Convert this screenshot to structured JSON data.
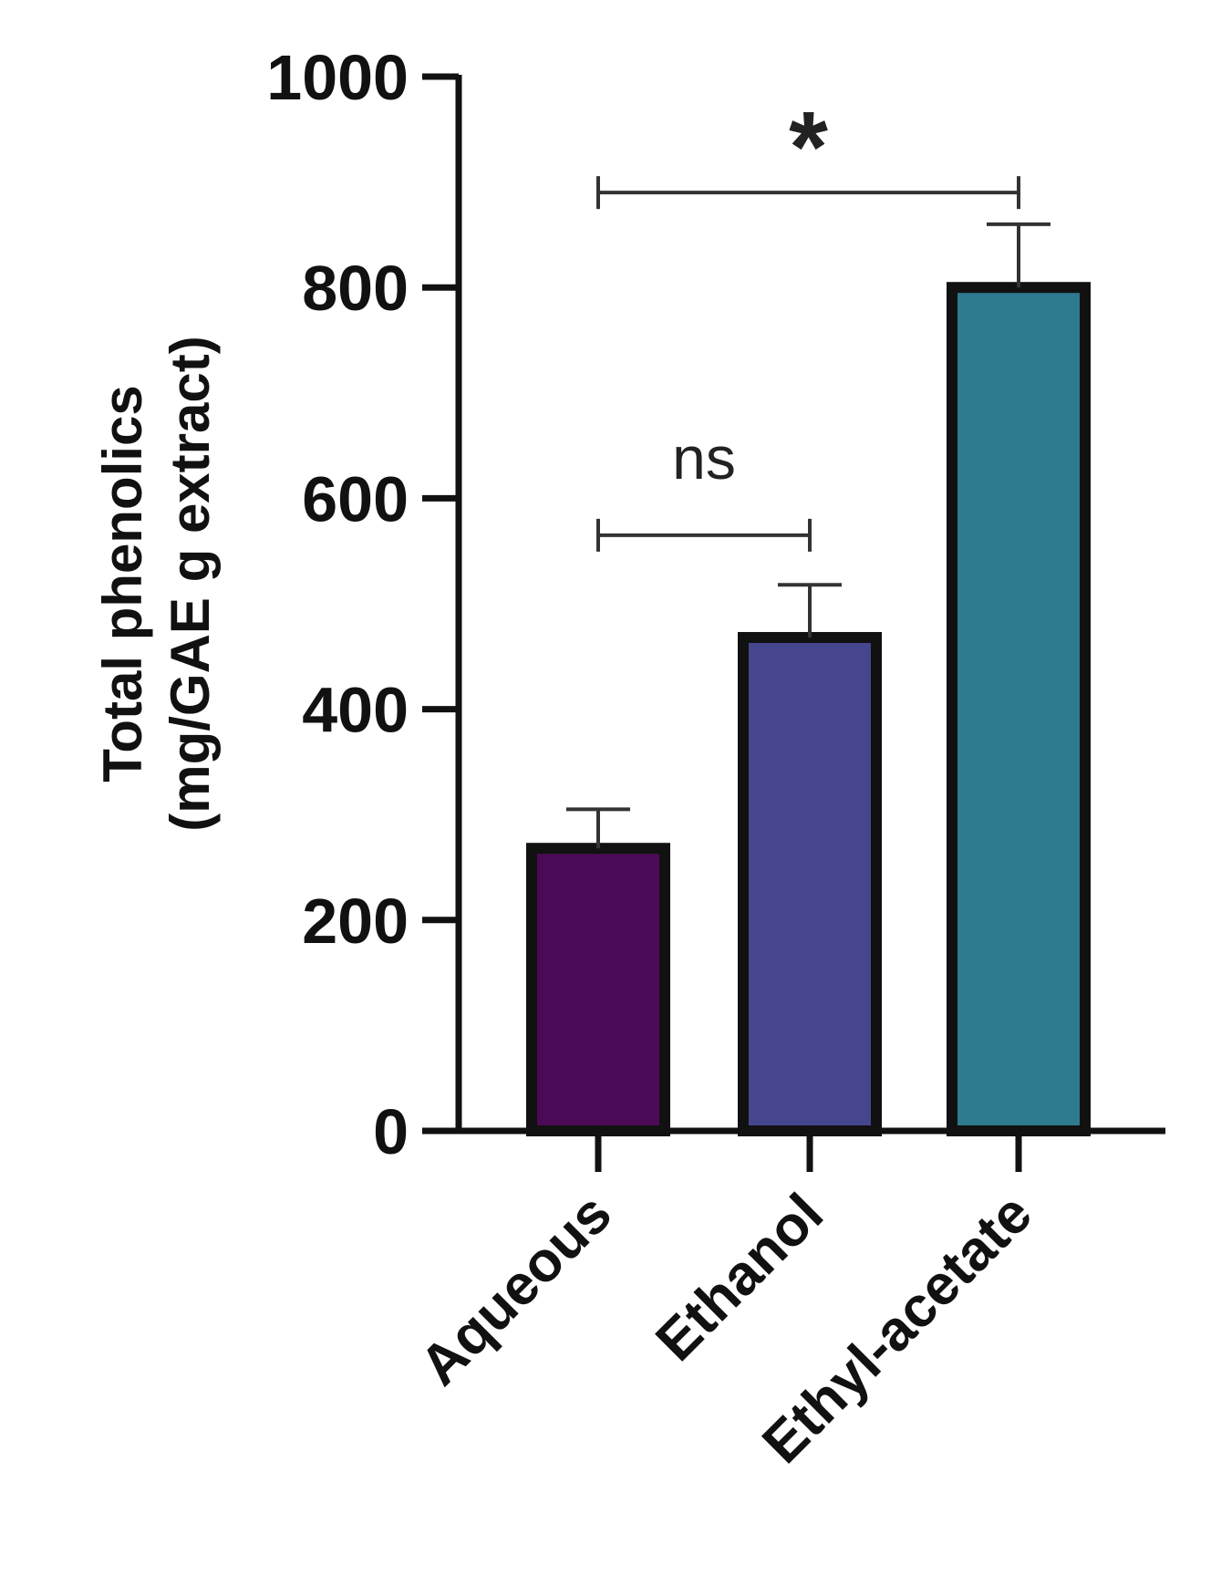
{
  "chart_data": {
    "type": "bar",
    "categories": [
      "Aqueous",
      "Ethanol",
      "Ethyl-acetate"
    ],
    "values": [
      268,
      468,
      800
    ],
    "errors": [
      37,
      50,
      60
    ],
    "colors": [
      "#4b0a55",
      "#46468f",
      "#2e7a8f"
    ],
    "title": "",
    "xlabel": "",
    "ylabel": [
      "Total phenolics",
      "(mg/GAE g extract)"
    ],
    "ylim": [
      0,
      1000
    ],
    "yticks": [
      0,
      200,
      400,
      600,
      800,
      1000
    ],
    "ytick_labels": [
      "0",
      "200",
      "400",
      "600",
      "800",
      "1000"
    ],
    "grid": false,
    "legend": "none",
    "annotations": [
      {
        "from": "Aqueous",
        "to": "Ethanol",
        "y": 565,
        "label": "ns"
      },
      {
        "from": "Aqueous",
        "to": "Ethyl-acetate",
        "y": 890,
        "label": "*"
      }
    ]
  }
}
